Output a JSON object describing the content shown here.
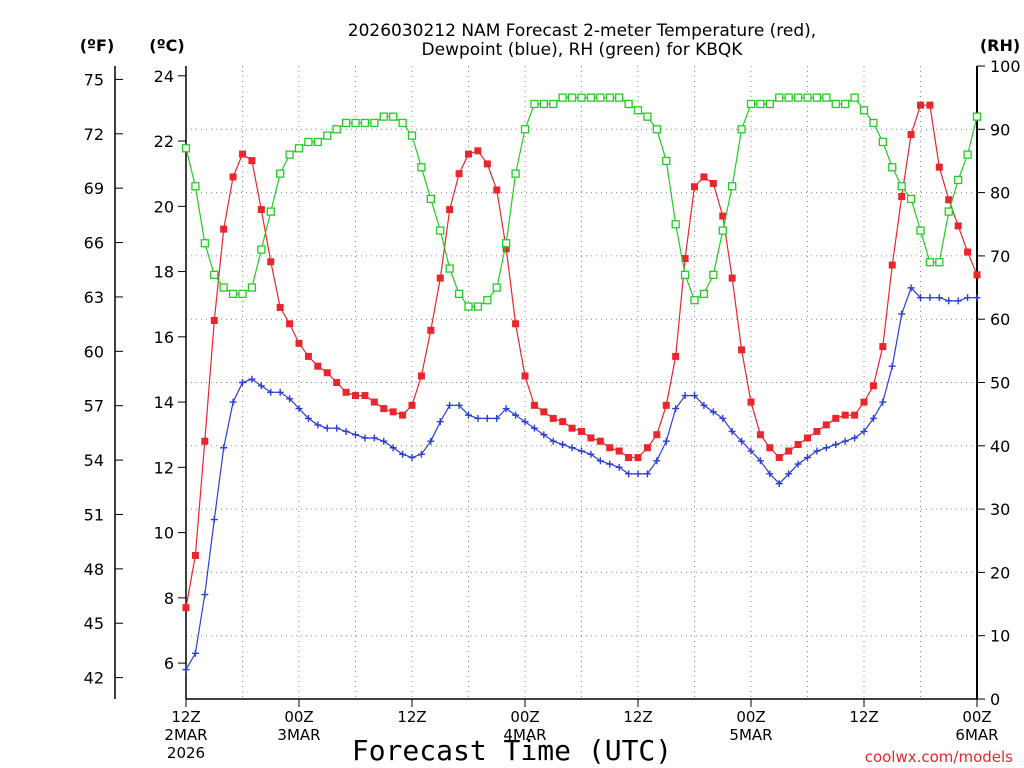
{
  "chart_data": {
    "type": "line",
    "title_line1": "2026030212 NAM Forecast 2-meter Temperature (red),",
    "title_line2": "Dewpoint (blue), RH (green) for KBQK",
    "unit_f": "(ºF)",
    "unit_c": "(ºC)",
    "unit_rh": "(RH)",
    "xlabel": "Forecast Time (UTC)",
    "credit": "coolwx.com/models",
    "xlim": [
      0,
      84
    ],
    "ylim_c": [
      4.9,
      24.3
    ],
    "ylim_f": [
      40.82,
      75.74
    ],
    "ylim_rh": [
      0,
      100
    ],
    "ticks_c": [
      6,
      8,
      10,
      12,
      14,
      16,
      18,
      20,
      22,
      24
    ],
    "ticks_f": [
      42,
      45,
      48,
      51,
      54,
      57,
      60,
      63,
      66,
      69,
      72,
      75
    ],
    "ticks_rh": [
      0,
      10,
      20,
      30,
      40,
      50,
      60,
      70,
      80,
      90,
      100
    ],
    "x_ticks": [
      {
        "hour": 0,
        "label": "12Z",
        "sub1": "2MAR",
        "sub2": "2026"
      },
      {
        "hour": 12,
        "label": "00Z",
        "sub1": "3MAR",
        "sub2": ""
      },
      {
        "hour": 24,
        "label": "12Z",
        "sub1": "",
        "sub2": ""
      },
      {
        "hour": 36,
        "label": "00Z",
        "sub1": "4MAR",
        "sub2": ""
      },
      {
        "hour": 48,
        "label": "12Z",
        "sub1": "",
        "sub2": ""
      },
      {
        "hour": 60,
        "label": "00Z",
        "sub1": "5MAR",
        "sub2": ""
      },
      {
        "hour": 72,
        "label": "12Z",
        "sub1": "",
        "sub2": ""
      },
      {
        "hour": 84,
        "label": "00Z",
        "sub1": "6MAR",
        "sub2": ""
      }
    ],
    "series": [
      {
        "name": "Temperature",
        "color": "#e8262b",
        "marker": "filled-square",
        "axis": "c",
        "hours": [
          0,
          1,
          2,
          3,
          4,
          5,
          6,
          7,
          8,
          9,
          10,
          11,
          12,
          13,
          14,
          15,
          16,
          17,
          18,
          19,
          20,
          21,
          22,
          23,
          24,
          25,
          26,
          27,
          28,
          29,
          30,
          31,
          32,
          33,
          34,
          35,
          36,
          37,
          38,
          39,
          40,
          41,
          42,
          43,
          44,
          45,
          46,
          47,
          48,
          49,
          50,
          51,
          52,
          53,
          54,
          55,
          56,
          57,
          58,
          59,
          60,
          61,
          62,
          63,
          64,
          65,
          66,
          67,
          68,
          69,
          70,
          71,
          72,
          73,
          74,
          75,
          76,
          77,
          78,
          79,
          80,
          81,
          82,
          83,
          84
        ],
        "values": [
          7.7,
          9.3,
          12.8,
          16.5,
          19.3,
          20.9,
          21.6,
          21.4,
          19.9,
          18.3,
          16.9,
          16.4,
          15.8,
          15.4,
          15.1,
          14.9,
          14.6,
          14.3,
          14.2,
          14.2,
          14.0,
          13.8,
          13.7,
          13.6,
          13.9,
          14.8,
          16.2,
          17.8,
          19.9,
          21.0,
          21.6,
          21.7,
          21.3,
          20.5,
          18.7,
          16.4,
          14.8,
          13.9,
          13.7,
          13.5,
          13.4,
          13.2,
          13.1,
          12.9,
          12.8,
          12.6,
          12.5,
          12.3,
          12.3,
          12.6,
          13.0,
          13.9,
          15.4,
          18.4,
          20.6,
          20.9,
          20.7,
          19.7,
          17.8,
          15.6,
          14.0,
          13.0,
          12.6,
          12.3,
          12.5,
          12.7,
          12.9,
          13.1,
          13.3,
          13.5,
          13.6,
          13.6,
          14.0,
          14.5,
          15.7,
          18.2,
          20.3,
          22.2,
          23.1,
          23.1,
          21.2,
          20.2,
          19.4,
          18.6,
          17.9
        ]
      },
      {
        "name": "Dewpoint",
        "color": "#2b3fd6",
        "marker": "plus",
        "axis": "c",
        "hours": [
          0,
          1,
          2,
          3,
          4,
          5,
          6,
          7,
          8,
          9,
          10,
          11,
          12,
          13,
          14,
          15,
          16,
          17,
          18,
          19,
          20,
          21,
          22,
          23,
          24,
          25,
          26,
          27,
          28,
          29,
          30,
          31,
          32,
          33,
          34,
          35,
          36,
          37,
          38,
          39,
          40,
          41,
          42,
          43,
          44,
          45,
          46,
          47,
          48,
          49,
          50,
          51,
          52,
          53,
          54,
          55,
          56,
          57,
          58,
          59,
          60,
          61,
          62,
          63,
          64,
          65,
          66,
          67,
          68,
          69,
          70,
          71,
          72,
          73,
          74,
          75,
          76,
          77,
          78,
          79,
          80,
          81,
          82,
          83,
          84
        ],
        "values": [
          5.8,
          6.3,
          8.1,
          10.4,
          12.6,
          14.0,
          14.6,
          14.7,
          14.5,
          14.3,
          14.3,
          14.1,
          13.8,
          13.5,
          13.3,
          13.2,
          13.2,
          13.1,
          13.0,
          12.9,
          12.9,
          12.8,
          12.6,
          12.4,
          12.3,
          12.4,
          12.8,
          13.4,
          13.9,
          13.9,
          13.6,
          13.5,
          13.5,
          13.5,
          13.8,
          13.6,
          13.4,
          13.2,
          13.0,
          12.8,
          12.7,
          12.6,
          12.5,
          12.4,
          12.2,
          12.1,
          12.0,
          11.8,
          11.8,
          11.8,
          12.2,
          12.8,
          13.8,
          14.2,
          14.2,
          13.9,
          13.7,
          13.5,
          13.1,
          12.8,
          12.5,
          12.2,
          11.8,
          11.5,
          11.8,
          12.1,
          12.3,
          12.5,
          12.6,
          12.7,
          12.8,
          12.9,
          13.1,
          13.5,
          14.0,
          15.1,
          16.7,
          17.5,
          17.2,
          17.2,
          17.2,
          17.1,
          17.1,
          17.2,
          17.2
        ]
      },
      {
        "name": "RH",
        "color": "#22cc22",
        "marker": "open-square",
        "axis": "rh",
        "hours": [
          0,
          1,
          2,
          3,
          4,
          5,
          6,
          7,
          8,
          9,
          10,
          11,
          12,
          13,
          14,
          15,
          16,
          17,
          18,
          19,
          20,
          21,
          22,
          23,
          24,
          25,
          26,
          27,
          28,
          29,
          30,
          31,
          32,
          33,
          34,
          35,
          36,
          37,
          38,
          39,
          40,
          41,
          42,
          43,
          44,
          45,
          46,
          47,
          48,
          49,
          50,
          51,
          52,
          53,
          54,
          55,
          56,
          57,
          58,
          59,
          60,
          61,
          62,
          63,
          64,
          65,
          66,
          67,
          68,
          69,
          70,
          71,
          72,
          73,
          74,
          75,
          76,
          77,
          78,
          79,
          80,
          81,
          82,
          83,
          84
        ],
        "values": [
          87,
          81,
          72,
          67,
          65,
          64,
          64,
          65,
          71,
          77,
          83,
          86,
          87,
          88,
          88,
          89,
          90,
          91,
          91,
          91,
          91,
          92,
          92,
          91,
          89,
          84,
          79,
          74,
          68,
          64,
          62,
          62,
          63,
          65,
          72,
          83,
          90,
          94,
          94,
          94,
          95,
          95,
          95,
          95,
          95,
          95,
          95,
          94,
          93,
          92,
          90,
          85,
          75,
          67,
          63,
          64,
          67,
          74,
          81,
          90,
          94,
          94,
          94,
          95,
          95,
          95,
          95,
          95,
          95,
          94,
          94,
          95,
          93,
          91,
          88,
          84,
          81,
          79,
          74,
          69,
          69,
          77,
          82,
          86,
          92
        ]
      }
    ]
  }
}
